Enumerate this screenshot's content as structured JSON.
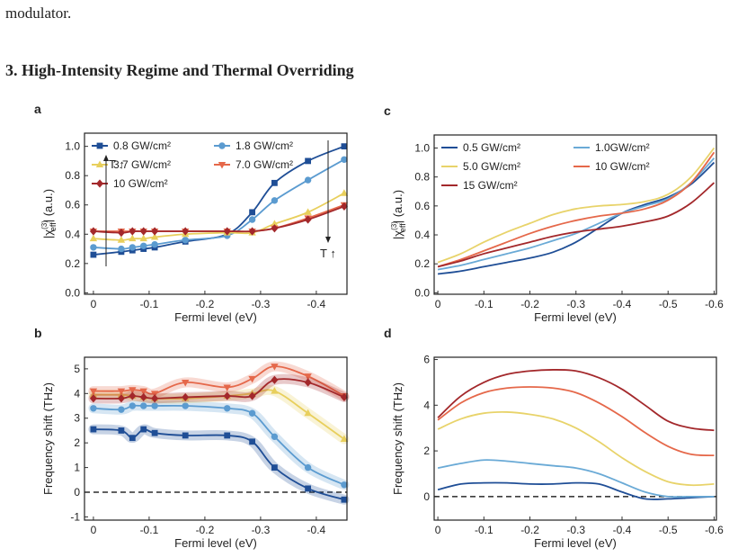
{
  "text": "modulator.",
  "heading": "3. High-Intensity Regime and Thermal Overriding",
  "chart_data": [
    {
      "panel": "a",
      "type": "line",
      "xlabel": "Fermi level (eV)",
      "ylabel": {
        "pre": "|χ",
        "sup": "(3)",
        "sub": "eff",
        "post": "| (a.u.)"
      },
      "x": [
        0,
        -0.05,
        -0.07,
        -0.09,
        -0.11,
        -0.165,
        -0.24,
        -0.285,
        -0.325,
        -0.385,
        -0.45
      ],
      "xlim": [
        0.016,
        -0.455
      ],
      "xticks": [
        0,
        -0.1,
        -0.2,
        -0.3,
        -0.4
      ],
      "ylim": [
        -0.01,
        1.09
      ],
      "yticks": [
        {
          "value": 0,
          "label": "0.0"
        },
        0.2,
        0.4,
        0.6,
        0.8,
        {
          "value": 1,
          "label": "1.0"
        }
      ],
      "legend": "upper left",
      "legend_columns": 2,
      "annotations": [
        "T ↑",
        "T ↑"
      ],
      "series": [
        {
          "name": "0.8 GW/cm²",
          "color": "#1f4e96",
          "marker": "square",
          "values": [
            0.26,
            0.28,
            0.29,
            0.3,
            0.31,
            0.35,
            0.4,
            0.55,
            0.75,
            0.9,
            1.0
          ]
        },
        {
          "name": "1.8 GW/cm²",
          "color": "#5b9bd0",
          "marker": "circle",
          "values": [
            0.31,
            0.3,
            0.31,
            0.32,
            0.33,
            0.36,
            0.39,
            0.5,
            0.63,
            0.77,
            0.91
          ]
        },
        {
          "name": "3.7 GW/cm²",
          "color": "#e8cf5c",
          "marker": "triangle-up",
          "values": [
            0.37,
            0.36,
            0.37,
            0.37,
            0.38,
            0.4,
            0.41,
            0.41,
            0.47,
            0.55,
            0.68
          ]
        },
        {
          "name": "7.0 GW/cm²",
          "color": "#e5684a",
          "marker": "triangle-down",
          "values": [
            0.42,
            0.42,
            0.42,
            0.42,
            0.42,
            0.42,
            0.42,
            0.42,
            0.44,
            0.51,
            0.6
          ]
        },
        {
          "name": "10 GW/cm²",
          "color": "#a3282b",
          "marker": "diamond",
          "values": [
            0.42,
            0.41,
            0.42,
            0.42,
            0.42,
            0.42,
            0.42,
            0.42,
            0.44,
            0.5,
            0.59
          ]
        }
      ]
    },
    {
      "panel": "b",
      "type": "line",
      "xlabel": "Fermi level (eV)",
      "ylabel": "Frequency shift (THz)",
      "x": [
        0,
        -0.05,
        -0.07,
        -0.09,
        -0.11,
        -0.165,
        -0.24,
        -0.285,
        -0.325,
        -0.385,
        -0.45
      ],
      "xlim": [
        0.016,
        -0.455
      ],
      "xticks": [
        0,
        -0.1,
        -0.2,
        -0.3,
        -0.4
      ],
      "ylim": [
        -1.13,
        5.47
      ],
      "yticks": [
        -1,
        0,
        1,
        2,
        3,
        4,
        5
      ],
      "zero_line": true,
      "bands": true,
      "series": [
        {
          "color": "#1f4e96",
          "marker": "square",
          "values": [
            2.55,
            2.5,
            2.2,
            2.55,
            2.4,
            2.3,
            2.3,
            2.05,
            1.0,
            0.15,
            -0.3
          ]
        },
        {
          "color": "#5b9bd0",
          "marker": "circle",
          "values": [
            3.4,
            3.35,
            3.5,
            3.5,
            3.5,
            3.5,
            3.4,
            3.2,
            2.25,
            1.0,
            0.3
          ]
        },
        {
          "color": "#e8cf5c",
          "marker": "triangle-up",
          "values": [
            3.95,
            3.95,
            3.9,
            3.85,
            3.8,
            3.8,
            3.9,
            4.0,
            4.1,
            3.2,
            2.15
          ]
        },
        {
          "color": "#e5684a",
          "marker": "triangle-down",
          "values": [
            4.1,
            4.1,
            4.15,
            4.1,
            4.0,
            4.45,
            4.25,
            4.6,
            5.1,
            4.7,
            3.9
          ]
        },
        {
          "color": "#a3282b",
          "marker": "diamond",
          "values": [
            3.8,
            3.8,
            3.9,
            3.85,
            3.8,
            3.85,
            3.9,
            3.9,
            4.55,
            4.45,
            3.85
          ]
        }
      ]
    },
    {
      "panel": "c",
      "type": "line",
      "xlabel": "Fermi level (eV)",
      "ylabel": {
        "pre": "|χ",
        "sup": "(3)",
        "sub": "eff",
        "post": "| (a.u.)"
      },
      "x": [
        0,
        -0.05,
        -0.1,
        -0.15,
        -0.2,
        -0.25,
        -0.3,
        -0.35,
        -0.4,
        -0.45,
        -0.5,
        -0.55,
        -0.6
      ],
      "xlim": [
        0.008,
        -0.605
      ],
      "xticks": [
        0,
        -0.1,
        -0.2,
        -0.3,
        -0.4,
        -0.5,
        -0.6
      ],
      "ylim": [
        -0.01,
        1.09
      ],
      "yticks": [
        {
          "value": 0,
          "label": "0.0"
        },
        0.2,
        0.4,
        0.6,
        0.8,
        {
          "value": 1,
          "label": "1.0"
        }
      ],
      "legend": "upper left",
      "legend_columns": 2,
      "series": [
        {
          "name": "0.5 GW/cm²",
          "color": "#1f4e96",
          "values": [
            0.13,
            0.15,
            0.18,
            0.21,
            0.24,
            0.28,
            0.35,
            0.45,
            0.55,
            0.61,
            0.66,
            0.75,
            0.9
          ]
        },
        {
          "name": "1.0GW/cm²",
          "color": "#6aaad6",
          "values": [
            0.16,
            0.19,
            0.23,
            0.27,
            0.31,
            0.36,
            0.41,
            0.48,
            0.55,
            0.6,
            0.65,
            0.76,
            0.93
          ]
        },
        {
          "name": "5.0 GW/cm²",
          "color": "#e8d36a",
          "values": [
            0.21,
            0.27,
            0.35,
            0.42,
            0.48,
            0.54,
            0.58,
            0.6,
            0.61,
            0.63,
            0.68,
            0.8,
            1.0
          ]
        },
        {
          "name": "10 GW/cm²",
          "color": "#e5684a",
          "values": [
            0.18,
            0.23,
            0.29,
            0.35,
            0.41,
            0.46,
            0.5,
            0.53,
            0.55,
            0.58,
            0.64,
            0.76,
            0.97
          ]
        },
        {
          "name": "15 GW/cm²",
          "color": "#a3282b",
          "values": [
            0.18,
            0.22,
            0.27,
            0.31,
            0.35,
            0.39,
            0.42,
            0.44,
            0.46,
            0.49,
            0.53,
            0.62,
            0.76
          ]
        }
      ]
    },
    {
      "panel": "d",
      "type": "line",
      "xlabel": "Fermi level (eV)",
      "ylabel": "Frequency shift (THz)",
      "x": [
        0,
        -0.05,
        -0.1,
        -0.15,
        -0.2,
        -0.25,
        -0.3,
        -0.35,
        -0.4,
        -0.45,
        -0.5,
        -0.55,
        -0.6
      ],
      "xlim": [
        0.008,
        -0.605
      ],
      "xticks": [
        0,
        -0.1,
        -0.2,
        -0.3,
        -0.4,
        -0.5,
        -0.6
      ],
      "ylim": [
        -1.03,
        6.1
      ],
      "yticks": [
        0,
        2,
        4,
        6
      ],
      "zero_line": true,
      "series": [
        {
          "color": "#1f4e96",
          "values": [
            0.3,
            0.55,
            0.6,
            0.6,
            0.55,
            0.55,
            0.6,
            0.55,
            0.2,
            -0.1,
            -0.1,
            -0.05,
            0
          ]
        },
        {
          "color": "#6aaad6",
          "values": [
            1.25,
            1.45,
            1.6,
            1.55,
            1.45,
            1.35,
            1.25,
            1.0,
            0.6,
            0.2,
            0,
            0,
            0
          ]
        },
        {
          "color": "#e8d36a",
          "values": [
            2.95,
            3.4,
            3.65,
            3.7,
            3.6,
            3.4,
            3.0,
            2.4,
            1.7,
            1.1,
            0.65,
            0.5,
            0.55
          ]
        },
        {
          "color": "#e5684a",
          "values": [
            3.35,
            4.1,
            4.55,
            4.75,
            4.8,
            4.75,
            4.55,
            4.1,
            3.5,
            2.8,
            2.2,
            1.85,
            1.8
          ]
        },
        {
          "color": "#a3282b",
          "values": [
            3.45,
            4.4,
            5.0,
            5.35,
            5.5,
            5.55,
            5.5,
            5.2,
            4.7,
            4.0,
            3.3,
            3.0,
            2.9
          ]
        }
      ]
    }
  ]
}
